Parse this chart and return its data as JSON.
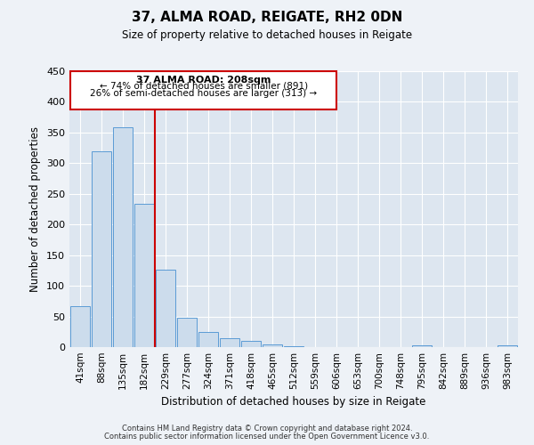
{
  "title": "37, ALMA ROAD, REIGATE, RH2 0DN",
  "subtitle": "Size of property relative to detached houses in Reigate",
  "xlabel": "Distribution of detached houses by size in Reigate",
  "ylabel": "Number of detached properties",
  "bar_labels": [
    "41sqm",
    "88sqm",
    "135sqm",
    "182sqm",
    "229sqm",
    "277sqm",
    "324sqm",
    "371sqm",
    "418sqm",
    "465sqm",
    "512sqm",
    "559sqm",
    "606sqm",
    "653sqm",
    "700sqm",
    "748sqm",
    "795sqm",
    "842sqm",
    "889sqm",
    "936sqm",
    "983sqm"
  ],
  "bar_values": [
    67,
    320,
    358,
    234,
    127,
    48,
    24,
    14,
    10,
    4,
    1,
    0,
    0,
    0,
    0,
    0,
    3,
    0,
    0,
    0,
    3
  ],
  "bar_color": "#ccdcec",
  "bar_edge_color": "#5b9bd5",
  "vline_x": 3.5,
  "vline_color": "#cc0000",
  "ylim": [
    0,
    450
  ],
  "yticks": [
    0,
    50,
    100,
    150,
    200,
    250,
    300,
    350,
    400,
    450
  ],
  "annotation_title": "37 ALMA ROAD: 208sqm",
  "annotation_line1": "← 74% of detached houses are smaller (891)",
  "annotation_line2": "26% of semi-detached houses are larger (313) →",
  "annotation_box_color": "#cc0000",
  "footer_line1": "Contains HM Land Registry data © Crown copyright and database right 2024.",
  "footer_line2": "Contains public sector information licensed under the Open Government Licence v3.0.",
  "bg_color": "#eef2f7",
  "plot_bg_color": "#dde6f0",
  "grid_color": "#ffffff"
}
